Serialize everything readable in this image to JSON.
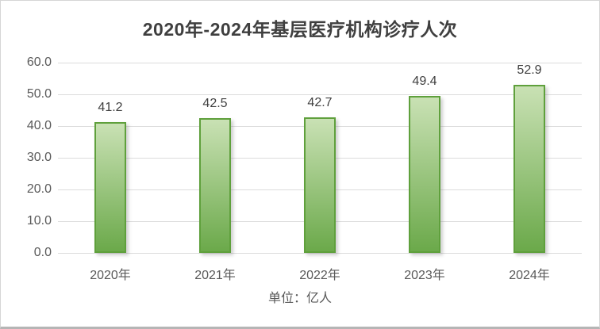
{
  "chart_data": {
    "type": "bar",
    "title": "2020年-2024年基层医疗机构诊疗人次",
    "categories": [
      "2020年",
      "2021年",
      "2022年",
      "2023年",
      "2024年"
    ],
    "values": [
      41.2,
      42.5,
      42.7,
      49.4,
      52.9
    ],
    "data_labels": [
      "41.2",
      "42.5",
      "42.7",
      "49.4",
      "52.9"
    ],
    "y_ticks": [
      "0.0",
      "10.0",
      "20.0",
      "30.0",
      "40.0",
      "50.0",
      "60.0"
    ],
    "ylim": [
      0,
      60
    ],
    "y_step": 10,
    "grid": true,
    "legend": "none",
    "footer": "单位：亿人",
    "colors": {
      "bar_fill_top": "#c9e1b4",
      "bar_fill_bottom": "#6ba94a",
      "bar_border": "#5fa03c",
      "gridline": "#dcdcdc",
      "title_text": "#3f3f3f",
      "axis_text": "#595959",
      "data_label_text": "#404040",
      "background": "#ffffff"
    }
  }
}
